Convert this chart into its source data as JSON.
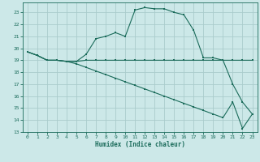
{
  "xlabel": "Humidex (Indice chaleur)",
  "bg_color": "#cce8e8",
  "grid_color": "#aacccc",
  "line_color": "#1a6b5a",
  "xlim": [
    -0.5,
    23.5
  ],
  "ylim": [
    13,
    23.8
  ],
  "yticks": [
    13,
    14,
    15,
    16,
    17,
    18,
    19,
    20,
    21,
    22,
    23
  ],
  "xticks": [
    0,
    1,
    2,
    3,
    4,
    5,
    6,
    7,
    8,
    9,
    10,
    11,
    12,
    13,
    14,
    15,
    16,
    17,
    18,
    19,
    20,
    21,
    22,
    23
  ],
  "line1_x": [
    0,
    1,
    2,
    3,
    4,
    5,
    6,
    7,
    8,
    9,
    10,
    11,
    12,
    13,
    14,
    15,
    16,
    17,
    18,
    19,
    20,
    21,
    22,
    23
  ],
  "line1_y": [
    19.7,
    19.4,
    19.0,
    19.0,
    18.9,
    18.9,
    19.5,
    20.8,
    21.0,
    21.3,
    21.0,
    23.2,
    23.4,
    23.3,
    23.3,
    23.0,
    22.8,
    21.5,
    19.2,
    19.2,
    19.0,
    17.0,
    15.5,
    14.5
  ],
  "line2_x": [
    0,
    1,
    2,
    3,
    4,
    5,
    6,
    7,
    8,
    9,
    10,
    11,
    12,
    13,
    14,
    15,
    16,
    17,
    18,
    19,
    20,
    21,
    22,
    23
  ],
  "line2_y": [
    19.7,
    19.4,
    19.0,
    19.0,
    18.9,
    18.9,
    19.0,
    19.0,
    19.0,
    19.0,
    19.0,
    19.0,
    19.0,
    19.0,
    19.0,
    19.0,
    19.0,
    19.0,
    19.0,
    19.0,
    19.0,
    19.0,
    19.0,
    19.0
  ],
  "line3_x": [
    0,
    1,
    2,
    3,
    4,
    5,
    6,
    7,
    8,
    9,
    10,
    11,
    12,
    13,
    14,
    15,
    16,
    17,
    18,
    19,
    20,
    21,
    22,
    23
  ],
  "line3_y": [
    19.7,
    19.4,
    19.0,
    19.0,
    18.9,
    18.7,
    18.4,
    18.1,
    17.8,
    17.5,
    17.2,
    16.9,
    16.6,
    16.3,
    16.0,
    15.7,
    15.4,
    15.1,
    14.8,
    14.5,
    14.2,
    15.5,
    13.3,
    14.5
  ]
}
